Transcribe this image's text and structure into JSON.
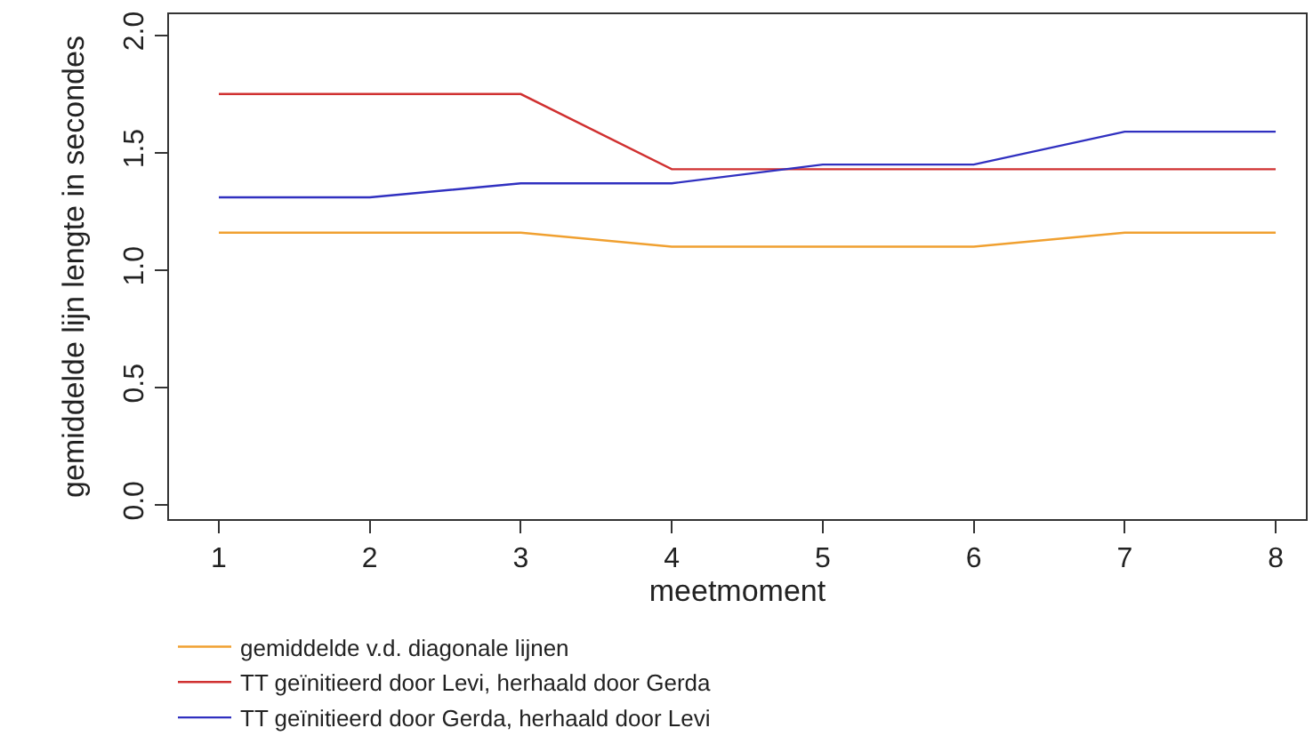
{
  "chart_data": {
    "type": "line",
    "xlabel": "meetmoment",
    "ylabel": "gemiddelde lijn lengte in secondes",
    "x": [
      1,
      2,
      3,
      4,
      5,
      6,
      7,
      8
    ],
    "series": [
      {
        "name": "gemiddelde v.d. diagonale lijnen",
        "color": "#f0a030",
        "values": [
          1.16,
          1.16,
          1.16,
          1.1,
          1.1,
          1.1,
          1.16,
          1.16
        ]
      },
      {
        "name": "TT geïnitieerd door Levi, herhaald door Gerda",
        "color": "#d03030",
        "values": [
          1.75,
          1.75,
          1.75,
          1.43,
          1.43,
          1.43,
          1.43,
          1.43
        ]
      },
      {
        "name": "TT geïnitieerd door Gerda, herhaald door Levi",
        "color": "#3030c0",
        "values": [
          1.31,
          1.31,
          1.37,
          1.37,
          1.45,
          1.45,
          1.59,
          1.59
        ]
      }
    ],
    "xlim": [
      0.67,
      8.2
    ],
    "ylim": [
      -0.06,
      2.09
    ],
    "xticks": [
      1,
      2,
      3,
      4,
      5,
      6,
      7,
      8
    ],
    "yticks": [
      {
        "value": 0,
        "label": "0.0"
      },
      {
        "value": 0.5,
        "label": "0.5"
      },
      {
        "value": 1,
        "label": "1.0"
      },
      {
        "value": 1.5,
        "label": "1.5"
      },
      {
        "value": 2,
        "label": "2.0"
      }
    ],
    "grid": false,
    "legend": "bottom left",
    "marker": "none",
    "line_style": "solid"
  }
}
